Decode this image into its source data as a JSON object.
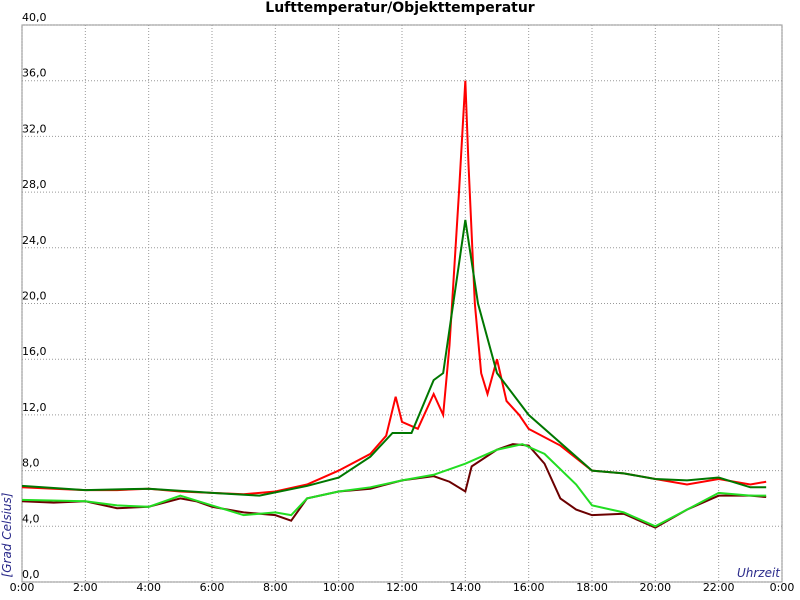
{
  "chart_data": {
    "type": "line",
    "title": "Lufttemperatur/Objekttemperatur",
    "y_label": "[Grad Celsius]",
    "x_label": "Uhrzeit",
    "xlim": [
      0,
      24
    ],
    "ylim": [
      0,
      40
    ],
    "grid": true,
    "xticks": [
      {
        "value": 0,
        "label": "0:00"
      },
      {
        "value": 2,
        "label": "2:00"
      },
      {
        "value": 4,
        "label": "4:00"
      },
      {
        "value": 6,
        "label": "6:00"
      },
      {
        "value": 8,
        "label": "8:00"
      },
      {
        "value": 10,
        "label": "10:00"
      },
      {
        "value": 12,
        "label": "12:00"
      },
      {
        "value": 14,
        "label": "14:00"
      },
      {
        "value": 16,
        "label": "16:00"
      },
      {
        "value": 18,
        "label": "18:00"
      },
      {
        "value": 20,
        "label": "20:00"
      },
      {
        "value": 22,
        "label": "22:00"
      },
      {
        "value": 24,
        "label": "0:00"
      }
    ],
    "yticks": [
      {
        "value": 0,
        "label": "0,0"
      },
      {
        "value": 4,
        "label": "4,0"
      },
      {
        "value": 8,
        "label": "8,0"
      },
      {
        "value": 12,
        "label": "12,0"
      },
      {
        "value": 16,
        "label": "16,0"
      },
      {
        "value": 20,
        "label": "20,0"
      },
      {
        "value": 24,
        "label": "24,0"
      },
      {
        "value": 28,
        "label": "28,0"
      },
      {
        "value": 32,
        "label": "32,0"
      },
      {
        "value": 36,
        "label": "36,0"
      },
      {
        "value": 40,
        "label": "40,0"
      }
    ],
    "series": [
      {
        "color": "#ff0000",
        "x": [
          0,
          1,
          2,
          3,
          4,
          5,
          6,
          7,
          8,
          9,
          10,
          11,
          11.5,
          11.8,
          12,
          12.5,
          13,
          13.3,
          13.5,
          13.8,
          14,
          14.1,
          14.3,
          14.5,
          14.7,
          15,
          15.3,
          15.7,
          16,
          17,
          18,
          19,
          20,
          21,
          22,
          23,
          23.5
        ],
        "values": [
          6.8,
          6.7,
          6.6,
          6.6,
          6.7,
          6.5,
          6.4,
          6.3,
          6.5,
          7.0,
          8.0,
          9.2,
          10.5,
          13.3,
          11.5,
          11,
          13.5,
          12,
          17,
          28,
          36,
          30,
          20,
          15,
          13.5,
          16,
          13,
          12,
          11,
          9.8,
          8,
          7.8,
          7.4,
          7,
          7.4,
          7,
          7.2
        ]
      },
      {
        "color": "#007700",
        "x": [
          0,
          2,
          4,
          6,
          7.5,
          9,
          10,
          11,
          11.7,
          12.3,
          13,
          13.3,
          14,
          14.4,
          15,
          16,
          17,
          18,
          19,
          20,
          21,
          22,
          23,
          23.5
        ],
        "values": [
          6.9,
          6.6,
          6.7,
          6.4,
          6.2,
          6.9,
          7.5,
          9,
          10.7,
          10.7,
          14.5,
          15,
          26,
          20,
          15,
          12,
          10,
          8,
          7.8,
          7.4,
          7.3,
          7.5,
          6.8,
          6.8
        ]
      },
      {
        "color": "#6b0000",
        "x": [
          0,
          1,
          2,
          3,
          4,
          5,
          5.5,
          6,
          7,
          8,
          8.5,
          9,
          10,
          11,
          12,
          13,
          13.5,
          14,
          14.2,
          15,
          15.5,
          16,
          16.5,
          17,
          17.5,
          18,
          19,
          20,
          21,
          22,
          23,
          23.5
        ],
        "values": [
          5.8,
          5.7,
          5.8,
          5.3,
          5.4,
          6,
          5.8,
          5.4,
          5.0,
          4.8,
          4.4,
          6,
          6.5,
          6.7,
          7.3,
          7.6,
          7.2,
          6.5,
          8.3,
          9.5,
          9.9,
          9.8,
          8.5,
          6,
          5.2,
          4.8,
          4.9,
          3.9,
          5.2,
          6.2,
          6.2,
          6.1
        ]
      },
      {
        "color": "#22dd22",
        "x": [
          0,
          2,
          3,
          4,
          5,
          6,
          7,
          8,
          8.5,
          9,
          10,
          11,
          12,
          13,
          14,
          15,
          15.8,
          16.5,
          17.5,
          18,
          19,
          20,
          21,
          22,
          23,
          23.5
        ],
        "values": [
          5.9,
          5.8,
          5.5,
          5.4,
          6.2,
          5.5,
          4.8,
          5.0,
          4.8,
          6,
          6.5,
          6.8,
          7.3,
          7.7,
          8.5,
          9.5,
          9.9,
          9.2,
          7,
          5.5,
          5,
          4.0,
          5.2,
          6.4,
          6.2,
          6.2
        ]
      }
    ]
  }
}
